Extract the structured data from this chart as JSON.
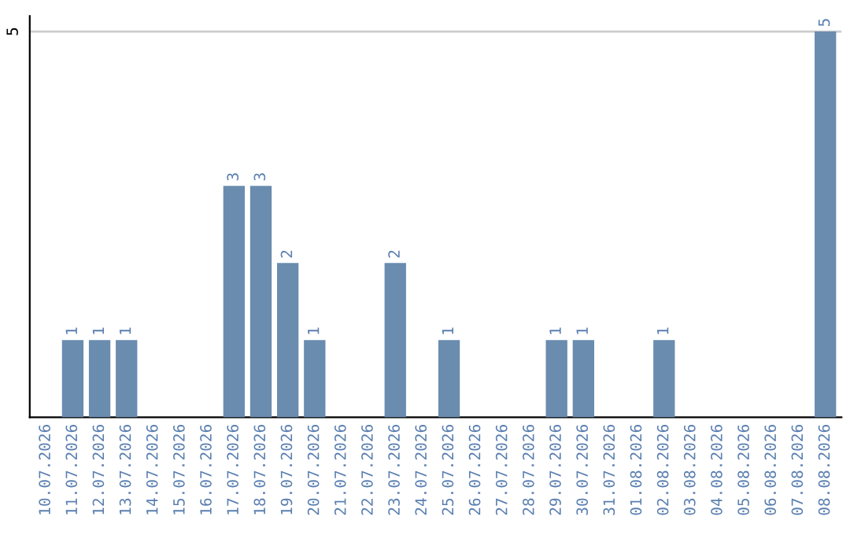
{
  "chart_data": {
    "type": "bar",
    "categories": [
      "10.07.2026",
      "11.07.2026",
      "12.07.2026",
      "13.07.2026",
      "14.07.2026",
      "15.07.2026",
      "16.07.2026",
      "17.07.2026",
      "18.07.2026",
      "19.07.2026",
      "20.07.2026",
      "21.07.2026",
      "22.07.2026",
      "23.07.2026",
      "24.07.2026",
      "25.07.2026",
      "26.07.2026",
      "27.07.2026",
      "28.07.2026",
      "29.07.2026",
      "30.07.2026",
      "31.07.2026",
      "01.08.2026",
      "02.08.2026",
      "03.08.2026",
      "04.08.2026",
      "05.08.2026",
      "06.08.2026",
      "07.08.2026",
      "08.08.2026"
    ],
    "values": [
      0,
      1,
      1,
      1,
      0,
      0,
      0,
      3,
      3,
      2,
      1,
      0,
      0,
      2,
      0,
      1,
      0,
      0,
      0,
      1,
      1,
      0,
      0,
      1,
      0,
      0,
      0,
      0,
      0,
      5
    ],
    "value_labels": [
      null,
      "1",
      "1",
      "1",
      null,
      null,
      null,
      "3",
      "3",
      "2",
      "1",
      null,
      null,
      "2",
      null,
      "1",
      null,
      null,
      null,
      "1",
      "1",
      null,
      null,
      "1",
      null,
      null,
      null,
      null,
      null,
      "5"
    ],
    "color": "#6a8caf",
    "ylim": [
      0,
      5.2
    ],
    "yticks": [
      5
    ],
    "grid": "y",
    "legend": false
  }
}
